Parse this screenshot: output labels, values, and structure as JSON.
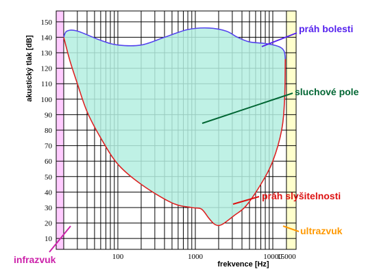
{
  "chart_data": {
    "type": "area",
    "title": "",
    "xlabel": "frekvence [Hz]",
    "ylabel": "akustický tlak [dB]",
    "xscale": "log",
    "xlim": [
      16,
      20000
    ],
    "ylim": [
      3,
      157
    ],
    "x_tick_labels": [
      {
        "value": 100,
        "label": "100"
      },
      {
        "value": 1000,
        "label": "1000"
      },
      {
        "value": 10000,
        "label": "10000"
      },
      {
        "value": 15000,
        "label": "15000"
      }
    ],
    "y_ticks": [
      10,
      20,
      30,
      40,
      50,
      60,
      70,
      80,
      90,
      100,
      110,
      120,
      130,
      140,
      150
    ],
    "grid": true,
    "bands": [
      {
        "name": "infrazvuk",
        "from": 16,
        "to": 20,
        "color": "#ffccff"
      },
      {
        "name": "ultrazvuk",
        "from": 15000,
        "to": 20000,
        "color": "#ffffcc"
      }
    ],
    "series": [
      {
        "name": "práh bolesti",
        "color": "#5544ee",
        "points": [
          [
            20,
            140
          ],
          [
            22,
            144
          ],
          [
            30,
            144
          ],
          [
            60,
            138
          ],
          [
            100,
            135
          ],
          [
            200,
            135
          ],
          [
            400,
            140
          ],
          [
            800,
            145
          ],
          [
            1500,
            146
          ],
          [
            2500,
            144
          ],
          [
            3500,
            140
          ],
          [
            5000,
            137
          ],
          [
            8000,
            136
          ],
          [
            12000,
            134
          ],
          [
            14000,
            131
          ],
          [
            14500,
            126
          ]
        ]
      },
      {
        "name": "práh slyšitelnosti",
        "color": "#dd2222",
        "points": [
          [
            14500,
            126
          ],
          [
            14200,
            100
          ],
          [
            13000,
            80
          ],
          [
            10000,
            60
          ],
          [
            7000,
            45
          ],
          [
            4500,
            31
          ],
          [
            3200,
            25
          ],
          [
            2200,
            19
          ],
          [
            1800,
            19
          ],
          [
            1500,
            23
          ],
          [
            1200,
            29
          ],
          [
            900,
            30
          ],
          [
            500,
            33
          ],
          [
            200,
            45
          ],
          [
            100,
            58
          ],
          [
            60,
            75
          ],
          [
            40,
            92
          ],
          [
            30,
            110
          ],
          [
            24,
            125
          ],
          [
            21,
            136
          ],
          [
            20,
            140
          ]
        ]
      }
    ],
    "fill": {
      "name": "sluchové pole",
      "color": "#b4eee0"
    },
    "annotations": [
      {
        "text": "práh bolesti",
        "color": "#5522ee"
      },
      {
        "text": "sluchové pole",
        "color": "#006633"
      },
      {
        "text": "práh slyšitelnosti",
        "color": "#dd1111"
      },
      {
        "text": "ultrazvuk",
        "color": "#ff9900"
      },
      {
        "text": "infrazvuk",
        "color": "#cc22aa"
      }
    ]
  }
}
